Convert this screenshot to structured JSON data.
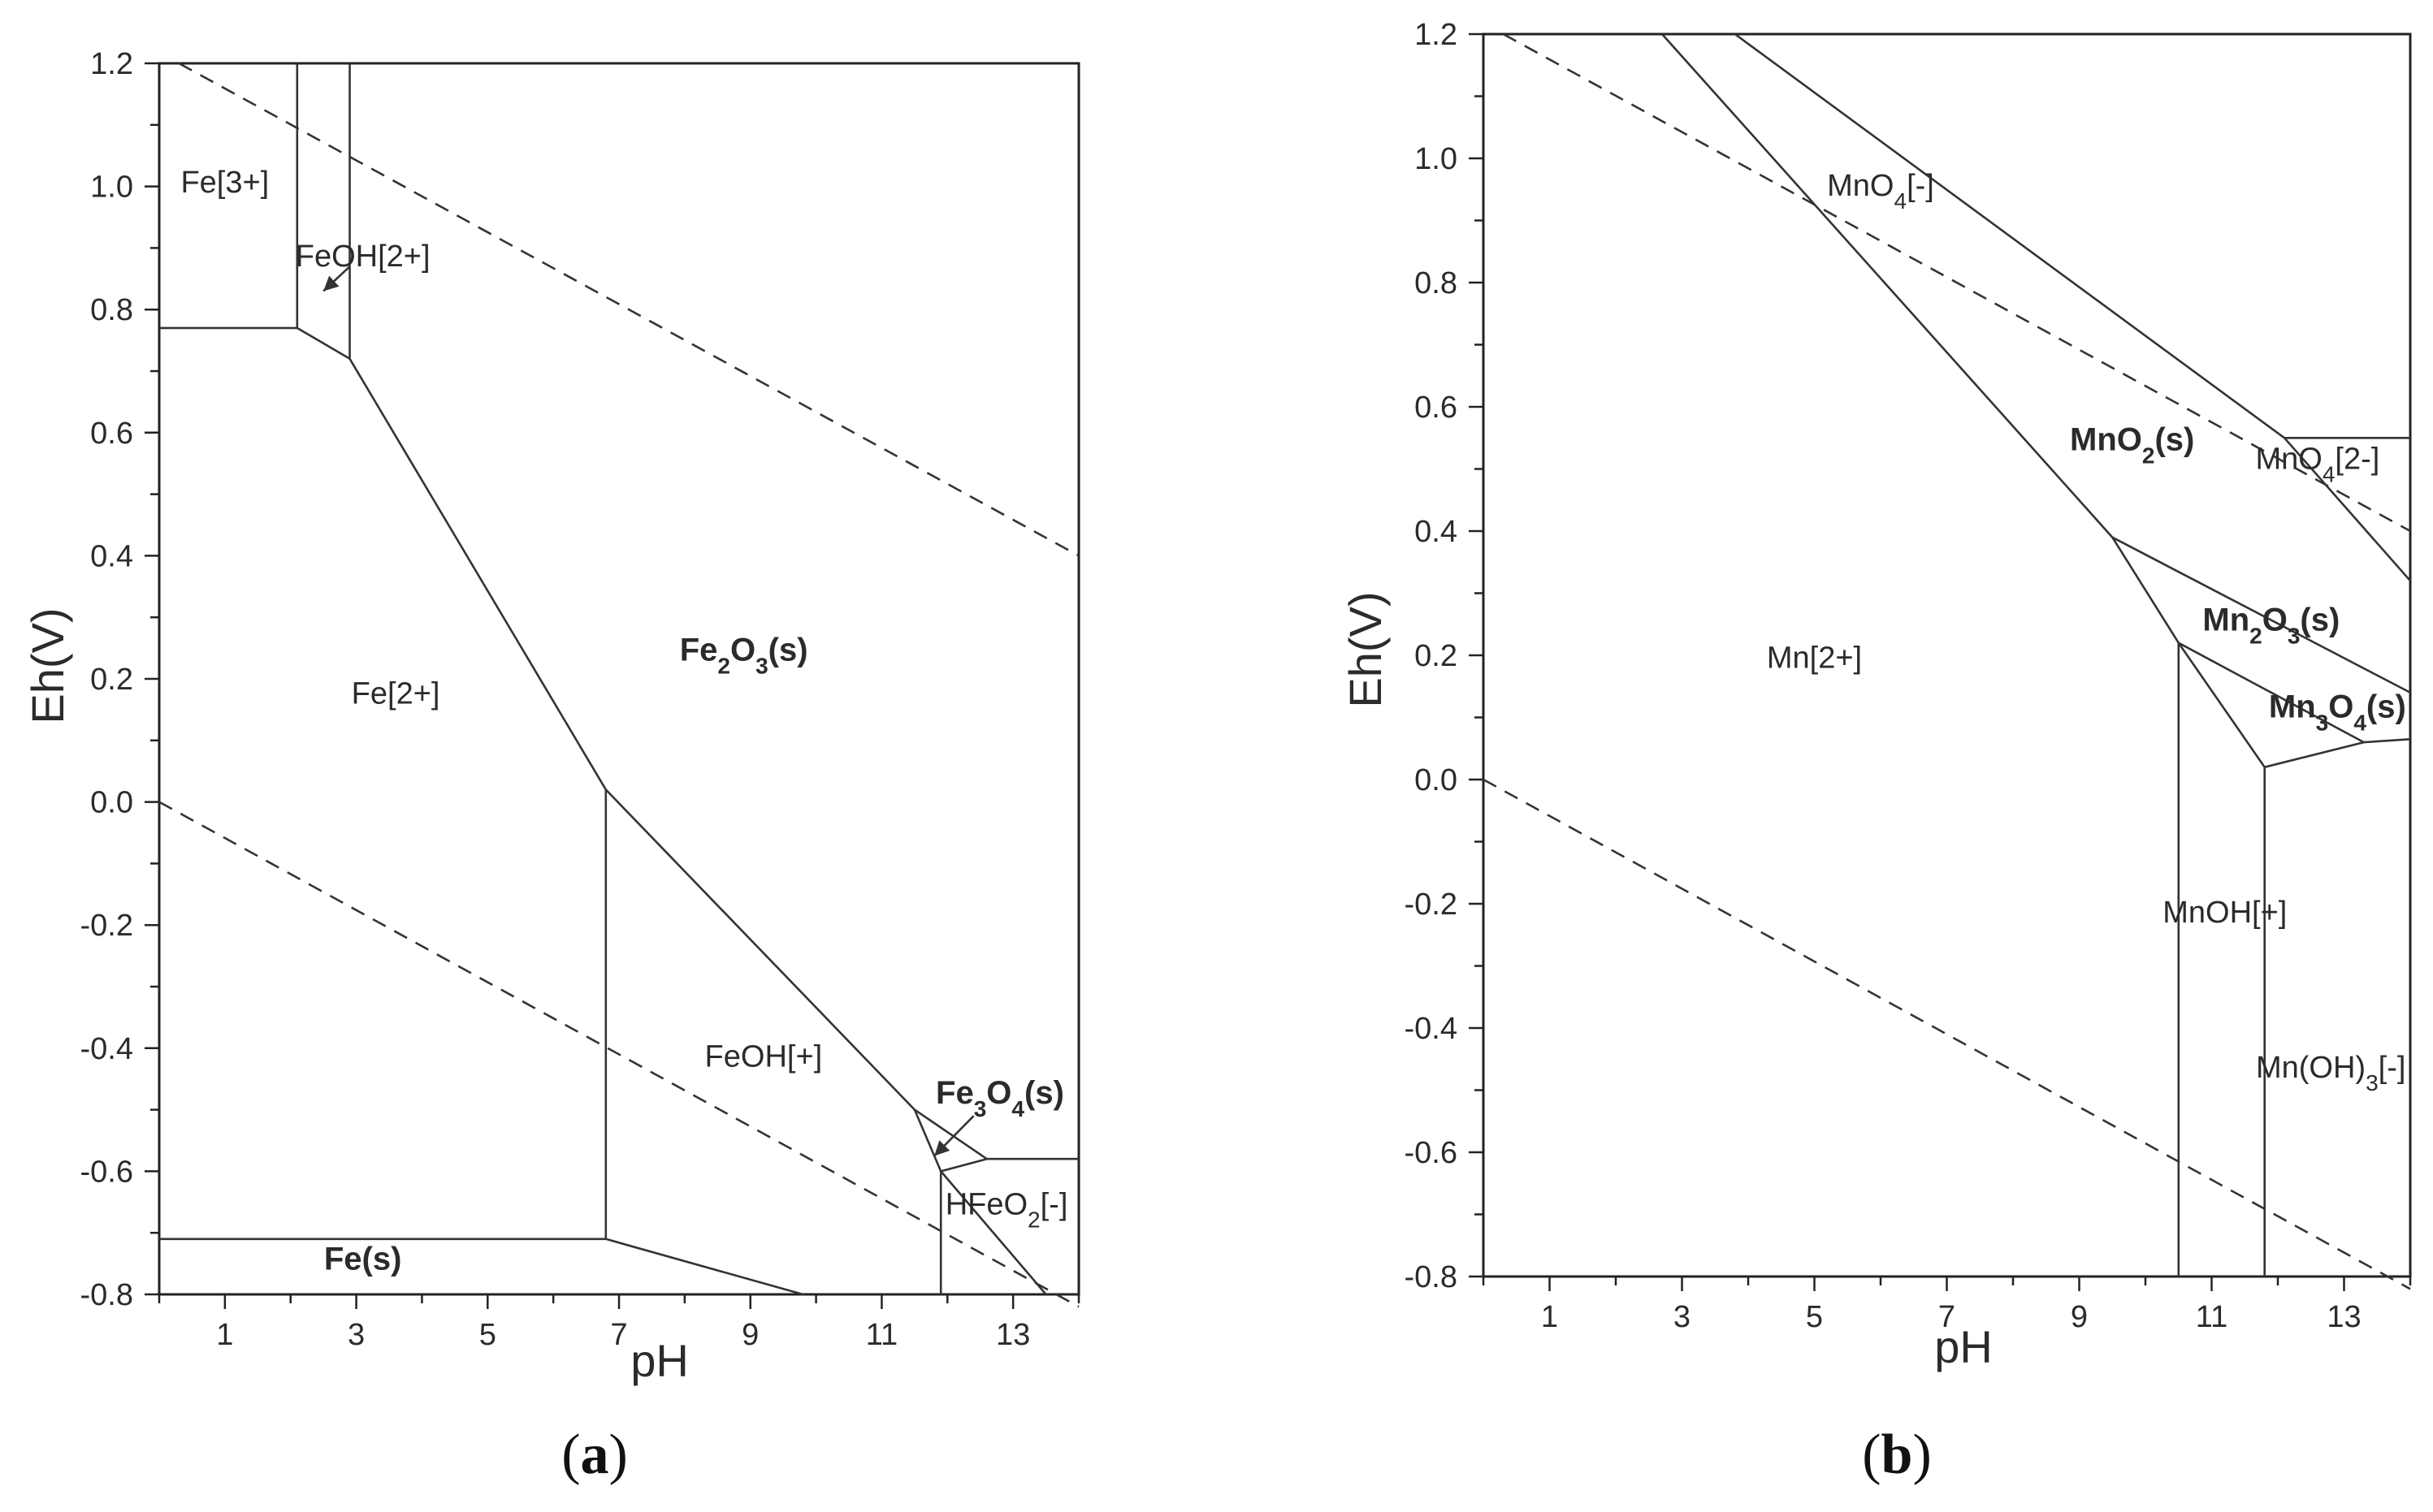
{
  "figure_labels": {
    "a": "a",
    "b": "b"
  },
  "chart_data": [
    {
      "id": "a",
      "type": "line",
      "xlabel": "pH",
      "ylabel": "Eh(V)",
      "xlim": [
        0,
        14
      ],
      "ylim": [
        -0.8,
        1.2
      ],
      "xticks": [
        {
          "value": 1,
          "label": "1"
        },
        {
          "value": 3,
          "label": "3"
        },
        {
          "value": 5,
          "label": "5"
        },
        {
          "value": 7,
          "label": "7"
        },
        {
          "value": 9,
          "label": "9"
        },
        {
          "value": 11,
          "label": "11"
        },
        {
          "value": 13,
          "label": "13"
        }
      ],
      "yticks": [
        {
          "value": 1.2,
          "label": "1.2"
        },
        {
          "value": 1.0,
          "label": "1.0"
        },
        {
          "value": 0.8,
          "label": "0.8"
        },
        {
          "value": 0.6,
          "label": "0.6"
        },
        {
          "value": 0.4,
          "label": "0.4"
        },
        {
          "value": 0.2,
          "label": "0.2"
        },
        {
          "value": 0.0,
          "label": "0.0"
        },
        {
          "value": -0.2,
          "label": "-0.2"
        },
        {
          "value": -0.4,
          "label": "-0.4"
        },
        {
          "value": -0.6,
          "label": "-0.6"
        },
        {
          "value": -0.8,
          "label": "-0.8"
        }
      ],
      "boundaries": [
        {
          "style": "solid",
          "points": [
            [
              0,
              0.77
            ],
            [
              2.1,
              0.77
            ]
          ]
        },
        {
          "style": "solid",
          "points": [
            [
              2.1,
              1.2
            ],
            [
              2.1,
              0.77
            ]
          ]
        },
        {
          "style": "solid",
          "points": [
            [
              2.1,
              0.77
            ],
            [
              2.9,
              0.72
            ]
          ]
        },
        {
          "style": "solid",
          "points": [
            [
              2.9,
              1.2
            ],
            [
              2.9,
              0.72
            ]
          ]
        },
        {
          "style": "solid",
          "points": [
            [
              2.9,
              0.72
            ],
            [
              6.8,
              0.02
            ]
          ]
        },
        {
          "style": "solid",
          "points": [
            [
              6.8,
              0.02
            ],
            [
              11.5,
              -0.5
            ]
          ]
        },
        {
          "style": "solid",
          "points": [
            [
              6.8,
              0.02
            ],
            [
              6.8,
              -0.71
            ]
          ]
        },
        {
          "style": "solid",
          "points": [
            [
              0,
              -0.71
            ],
            [
              6.8,
              -0.71
            ]
          ]
        },
        {
          "style": "solid",
          "points": [
            [
              6.8,
              -0.71
            ],
            [
              9.8,
              -0.8
            ]
          ]
        },
        {
          "style": "solid",
          "points": [
            [
              11.5,
              -0.5
            ],
            [
              12.6,
              -0.58
            ]
          ]
        },
        {
          "style": "solid",
          "points": [
            [
              11.9,
              -0.6
            ],
            [
              12.6,
              -0.58
            ]
          ]
        },
        {
          "style": "solid",
          "points": [
            [
              11.5,
              -0.5
            ],
            [
              11.9,
              -0.6
            ]
          ]
        },
        {
          "style": "solid",
          "points": [
            [
              12.6,
              -0.58
            ],
            [
              14,
              -0.58
            ]
          ]
        },
        {
          "style": "solid",
          "points": [
            [
              11.9,
              -0.6
            ],
            [
              11.9,
              -0.8
            ]
          ]
        },
        {
          "style": "solid",
          "points": [
            [
              11.9,
              -0.6
            ],
            [
              13.5,
              -0.8
            ]
          ]
        },
        {
          "style": "dashed",
          "points": [
            [
              0.3,
              1.2
            ],
            [
              14,
              0.4
            ]
          ]
        },
        {
          "style": "dashed",
          "points": [
            [
              0,
              0.0
            ],
            [
              14,
              -0.82
            ]
          ]
        }
      ],
      "arrows": [
        {
          "from": [
            2.9,
            0.87
          ],
          "to": [
            2.5,
            0.83
          ]
        },
        {
          "from": [
            12.4,
            -0.51
          ],
          "to": [
            11.8,
            -0.575
          ]
        }
      ],
      "regions": [
        {
          "at": [
            1.0,
            0.99
          ],
          "bold": false,
          "parts": [
            {
              "t": "Fe[3+]"
            }
          ]
        },
        {
          "at": [
            3.1,
            0.87
          ],
          "bold": false,
          "parts": [
            {
              "t": "FeOH[2+]"
            }
          ]
        },
        {
          "at": [
            3.6,
            0.16
          ],
          "bold": false,
          "parts": [
            {
              "t": "Fe[2+]"
            }
          ]
        },
        {
          "at": [
            8.9,
            0.23
          ],
          "bold": true,
          "parts": [
            {
              "t": "Fe"
            },
            {
              "t": "2",
              "sub": true
            },
            {
              "t": "O"
            },
            {
              "t": "3",
              "sub": true
            },
            {
              "t": "(s)"
            }
          ]
        },
        {
          "at": [
            9.2,
            -0.43
          ],
          "bold": false,
          "parts": [
            {
              "t": "FeOH[+]"
            }
          ]
        },
        {
          "at": [
            12.8,
            -0.49
          ],
          "bold": true,
          "parts": [
            {
              "t": "Fe"
            },
            {
              "t": "3",
              "sub": true
            },
            {
              "t": "O"
            },
            {
              "t": "4",
              "sub": true
            },
            {
              "t": "(s)"
            }
          ]
        },
        {
          "at": [
            12.9,
            -0.67
          ],
          "bold": false,
          "parts": [
            {
              "t": "HFeO"
            },
            {
              "t": "2",
              "sub": true
            },
            {
              "t": "[-]"
            }
          ]
        },
        {
          "at": [
            3.1,
            -0.76
          ],
          "bold": true,
          "parts": [
            {
              "t": "Fe(s)"
            }
          ]
        }
      ]
    },
    {
      "id": "b",
      "type": "line",
      "xlabel": "pH",
      "ylabel": "Eh(V)",
      "xlim": [
        0,
        14
      ],
      "ylim": [
        -0.8,
        1.2
      ],
      "xticks": [
        {
          "value": 1,
          "label": "1"
        },
        {
          "value": 3,
          "label": "3"
        },
        {
          "value": 5,
          "label": "5"
        },
        {
          "value": 7,
          "label": "7"
        },
        {
          "value": 9,
          "label": "9"
        },
        {
          "value": 11,
          "label": "11"
        },
        {
          "value": 13,
          "label": "13"
        }
      ],
      "yticks": [
        {
          "value": 1.2,
          "label": "1.2"
        },
        {
          "value": 1.0,
          "label": "1.0"
        },
        {
          "value": 0.8,
          "label": "0.8"
        },
        {
          "value": 0.6,
          "label": "0.6"
        },
        {
          "value": 0.4,
          "label": "0.4"
        },
        {
          "value": 0.2,
          "label": "0.2"
        },
        {
          "value": 0.0,
          "label": "0.0"
        },
        {
          "value": -0.2,
          "label": "-0.2"
        },
        {
          "value": -0.4,
          "label": "-0.4"
        },
        {
          "value": -0.6,
          "label": "-0.6"
        },
        {
          "value": -0.8,
          "label": "-0.8"
        }
      ],
      "boundaries": [
        {
          "style": "solid",
          "points": [
            [
              2.7,
              1.2
            ],
            [
              9.5,
              0.39
            ]
          ]
        },
        {
          "style": "solid",
          "points": [
            [
              9.5,
              0.39
            ],
            [
              10.5,
              0.22
            ]
          ]
        },
        {
          "style": "solid",
          "points": [
            [
              3.8,
              1.2
            ],
            [
              12.1,
              0.55
            ]
          ]
        },
        {
          "style": "solid",
          "points": [
            [
              12.1,
              0.55
            ],
            [
              14,
              0.32
            ]
          ]
        },
        {
          "style": "solid",
          "points": [
            [
              12.1,
              0.55
            ],
            [
              14,
              0.55
            ]
          ]
        },
        {
          "style": "solid",
          "points": [
            [
              9.5,
              0.39
            ],
            [
              14,
              0.14
            ]
          ]
        },
        {
          "style": "solid",
          "points": [
            [
              10.5,
              0.22
            ],
            [
              13.3,
              0.06
            ]
          ]
        },
        {
          "style": "solid",
          "points": [
            [
              13.3,
              0.06
            ],
            [
              14,
              0.065
            ]
          ]
        },
        {
          "style": "solid",
          "points": [
            [
              10.5,
              0.22
            ],
            [
              11.8,
              0.02
            ]
          ]
        },
        {
          "style": "solid",
          "points": [
            [
              11.8,
              0.02
            ],
            [
              13.3,
              0.06
            ]
          ]
        },
        {
          "style": "solid",
          "points": [
            [
              10.5,
              0.22
            ],
            [
              10.5,
              -0.8
            ]
          ]
        },
        {
          "style": "solid",
          "points": [
            [
              11.8,
              0.02
            ],
            [
              11.8,
              -0.8
            ]
          ]
        },
        {
          "style": "dashed",
          "points": [
            [
              0.3,
              1.2
            ],
            [
              14,
              0.4
            ]
          ]
        },
        {
          "style": "dashed",
          "points": [
            [
              0,
              0.0
            ],
            [
              14,
              -0.82
            ]
          ]
        }
      ],
      "arrows": [],
      "regions": [
        {
          "at": [
            6.0,
            0.94
          ],
          "bold": false,
          "parts": [
            {
              "t": "MnO"
            },
            {
              "t": "4",
              "sub": true
            },
            {
              "t": "[-]"
            }
          ]
        },
        {
          "at": [
            12.6,
            0.5
          ],
          "bold": false,
          "parts": [
            {
              "t": "MnO"
            },
            {
              "t": "4",
              "sub": true
            },
            {
              "t": "[2-]"
            }
          ]
        },
        {
          "at": [
            9.8,
            0.53
          ],
          "bold": true,
          "parts": [
            {
              "t": "MnO"
            },
            {
              "t": "2",
              "sub": true
            },
            {
              "t": "(s)"
            }
          ]
        },
        {
          "at": [
            11.9,
            0.24
          ],
          "bold": true,
          "parts": [
            {
              "t": "Mn"
            },
            {
              "t": "2",
              "sub": true
            },
            {
              "t": "O"
            },
            {
              "t": "3",
              "sub": true
            },
            {
              "t": "(s)"
            }
          ]
        },
        {
          "at": [
            12.9,
            0.1
          ],
          "bold": true,
          "parts": [
            {
              "t": "Mn"
            },
            {
              "t": "3",
              "sub": true
            },
            {
              "t": "O"
            },
            {
              "t": "4",
              "sub": true
            },
            {
              "t": "(s)"
            }
          ]
        },
        {
          "at": [
            5.0,
            0.18
          ],
          "bold": false,
          "parts": [
            {
              "t": "Mn[2+]"
            }
          ]
        },
        {
          "at": [
            11.2,
            -0.23
          ],
          "bold": false,
          "parts": [
            {
              "t": "MnOH[+]"
            }
          ]
        },
        {
          "at": [
            12.8,
            -0.48
          ],
          "bold": false,
          "parts": [
            {
              "t": "Mn(OH)"
            },
            {
              "t": "3",
              "sub": true
            },
            {
              "t": "[-]"
            }
          ]
        }
      ]
    }
  ]
}
